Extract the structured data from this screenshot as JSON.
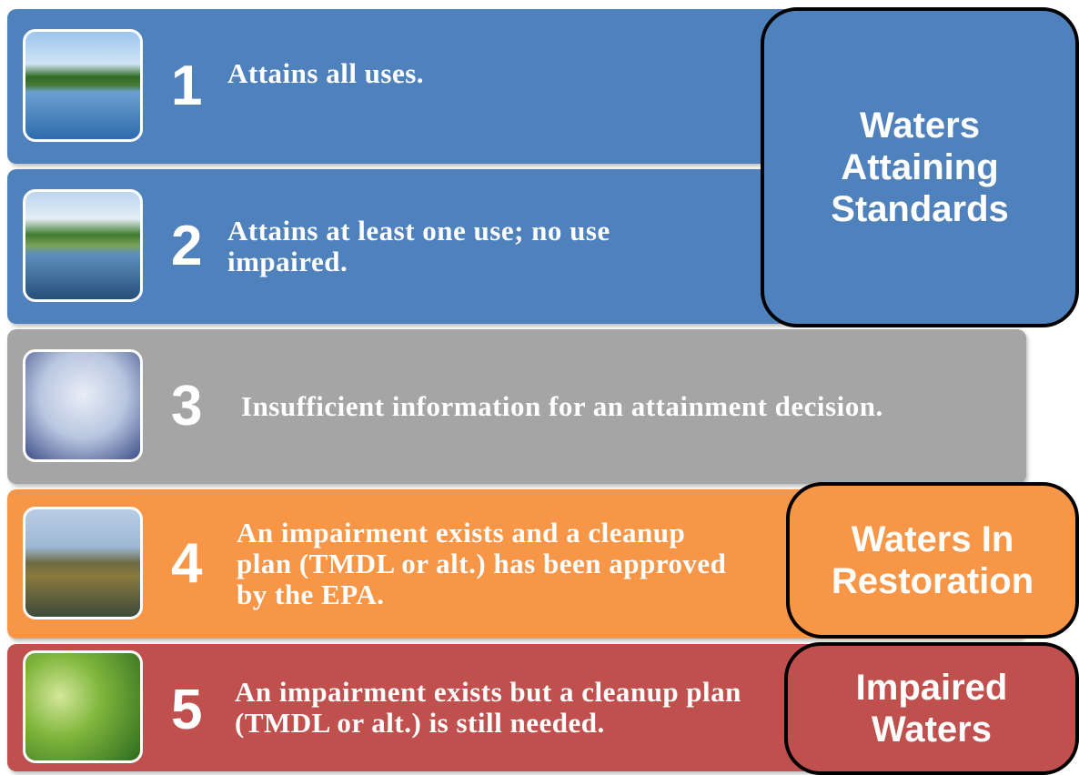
{
  "items": [
    {
      "number": "1",
      "text": "Attains all uses."
    },
    {
      "number": "2",
      "text": "Attains at least one use; no use impaired."
    },
    {
      "number": "3",
      "text": "Insufficient information for an attainment decision."
    },
    {
      "number": "4",
      "text": "An impairment exists and a cleanup plan (TMDL or alt.) has been approved by the EPA."
    },
    {
      "number": "5",
      "text": "An impairment exists but a cleanup plan (TMDL or alt.) is still needed."
    }
  ],
  "groups": [
    {
      "label": "Waters Attaining Standards"
    },
    {
      "label": "Waters In Restoration"
    },
    {
      "label": "Impaired Waters"
    }
  ]
}
